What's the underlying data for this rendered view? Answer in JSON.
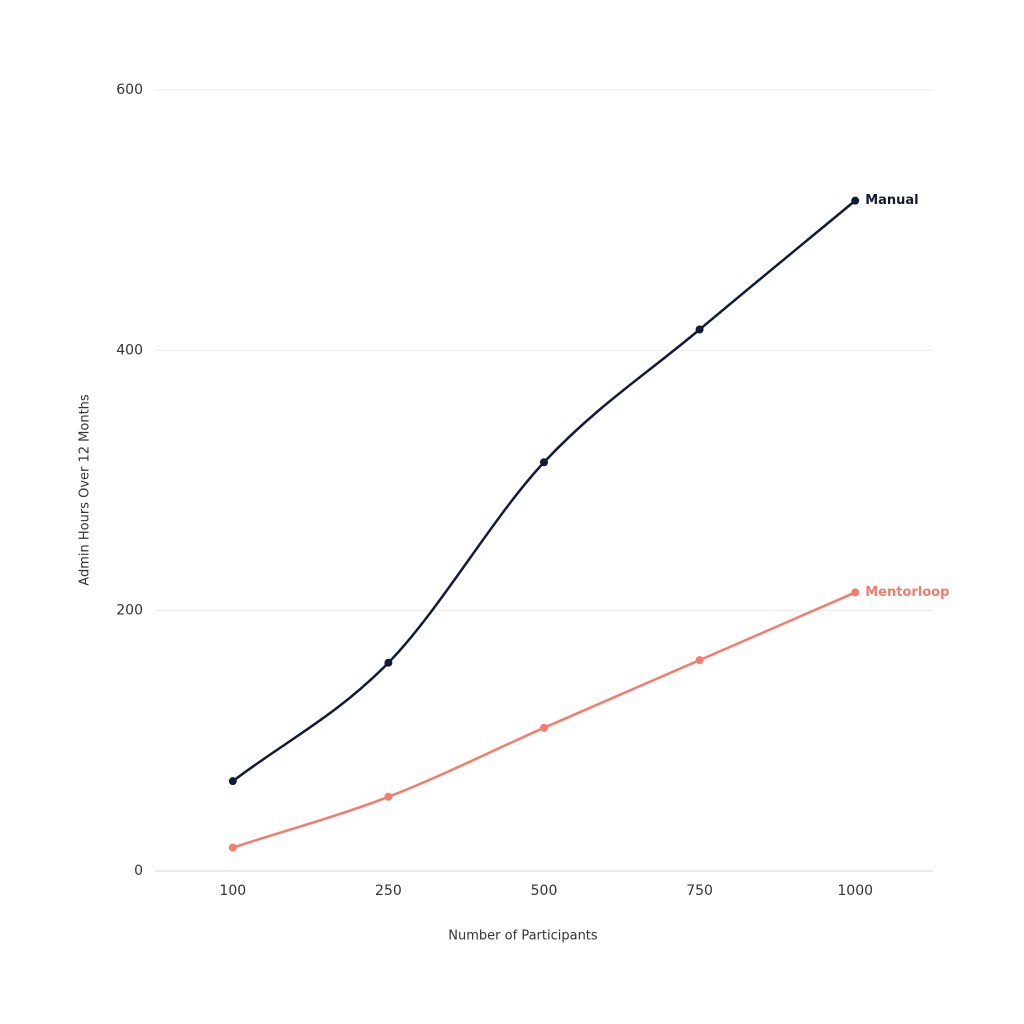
{
  "chart_data": {
    "type": "line",
    "x_label": "Number of Participants",
    "y_label": "Admin Hours Over 12 Months",
    "categories": [
      "100",
      "250",
      "500",
      "750",
      "1000"
    ],
    "series": [
      {
        "name": "Manual",
        "color": "#141b38",
        "values": [
          69,
          160,
          314,
          416,
          515
        ]
      },
      {
        "name": "Mentorloop",
        "color": "#f47c6e",
        "values": [
          18,
          57,
          110,
          162,
          214
        ]
      }
    ],
    "ylim": [
      0,
      600
    ],
    "yticks": [
      0,
      200,
      400,
      600
    ],
    "grid": true
  }
}
